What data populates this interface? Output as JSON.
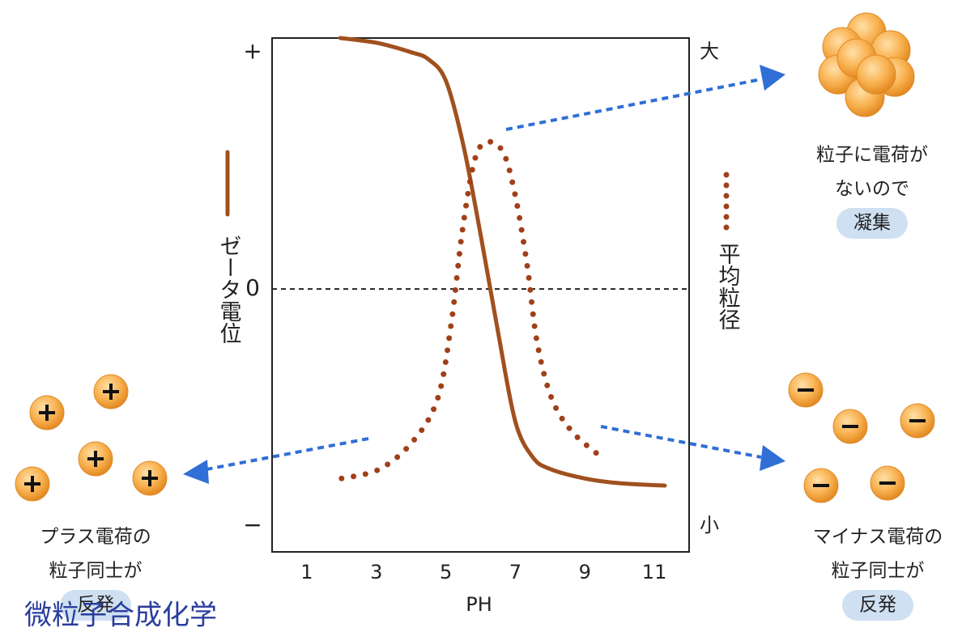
{
  "chart_data": {
    "type": "line",
    "xlabel": "PH",
    "xlim": [
      0,
      12
    ],
    "xticks": [
      1,
      3,
      5,
      7,
      9,
      11
    ],
    "ylim": [
      -1.11,
      1.06
    ],
    "yticks": [
      {
        "value": 1,
        "label": "+"
      },
      {
        "value": 0,
        "label": "0"
      },
      {
        "value": -1,
        "label": "−"
      }
    ],
    "y2lim": [
      -0.055,
      1.03
    ],
    "y2ticks": [
      {
        "value": 1,
        "label": "大"
      },
      {
        "value": 0,
        "label": "小"
      }
    ],
    "zero_line": true,
    "series": [
      {
        "name": "ゼータ電位",
        "color": "#a0501e",
        "style": "solid",
        "x": [
          1.96,
          3,
          4,
          4.5,
          5,
          5.5,
          6,
          6.5,
          7,
          7.5,
          8,
          9,
          10,
          11.3
        ],
        "values": [
          1.06,
          1.04,
          1.0,
          0.97,
          0.88,
          0.61,
          0.23,
          -0.18,
          -0.56,
          -0.71,
          -0.76,
          -0.8,
          -0.82,
          -0.83
        ]
      },
      {
        "name": "平均粒径",
        "color": "#a0401a",
        "style": "dotted",
        "axis": "y2",
        "x": [
          2.0,
          3.1,
          4.07,
          4.77,
          5.16,
          5.47,
          5.82,
          6.17,
          6.64,
          6.99,
          7.34,
          7.62,
          8.04,
          8.62,
          9.39
        ],
        "values": [
          0.1,
          0.12,
          0.18,
          0.27,
          0.43,
          0.62,
          0.77,
          0.81,
          0.79,
          0.7,
          0.55,
          0.39,
          0.27,
          0.2,
          0.15
        ]
      }
    ],
    "annotations": {
      "top_right": [
        "粒子に電荷が",
        "ないので",
        "凝集"
      ],
      "bottom_left": [
        "プラス電荷の",
        "粒子同士が",
        "反発"
      ],
      "bottom_right": [
        "マイナス電荷の",
        "粒子同士が",
        "反発"
      ]
    },
    "watermark": "微粒子合成化学"
  }
}
